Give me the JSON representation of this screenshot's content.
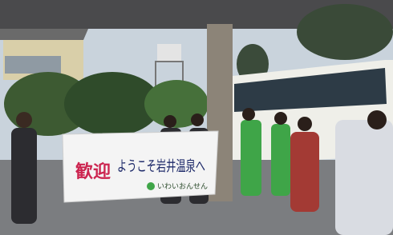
{
  "banner": {
    "welcome": "歓迎",
    "message": "ようこそ岩井温泉へ",
    "footer": "いわいおんせん"
  }
}
